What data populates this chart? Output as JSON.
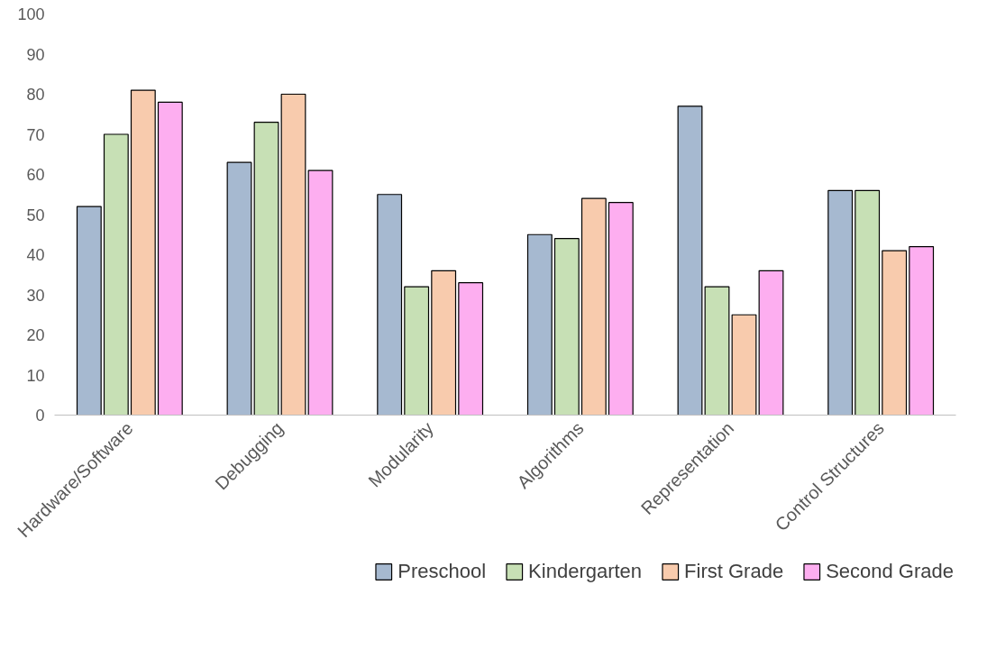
{
  "chart_data": {
    "type": "bar",
    "categories": [
      "Hardware/Software",
      "Debugging",
      "Modularity",
      "Algorithms",
      "Representation",
      "Control Structures"
    ],
    "series": [
      {
        "name": "Preschool",
        "color": "#a6b9d0",
        "values": [
          52,
          63,
          55,
          45,
          77,
          56
        ]
      },
      {
        "name": "Kindergarten",
        "color": "#c7e0b5",
        "values": [
          70,
          73,
          32,
          44,
          32,
          56
        ]
      },
      {
        "name": "First Grade",
        "color": "#f8cbad",
        "values": [
          81,
          80,
          36,
          54,
          25,
          41
        ]
      },
      {
        "name": "Second Grade",
        "color": "#fdaef0",
        "values": [
          78,
          61,
          33,
          53,
          36,
          42
        ]
      }
    ],
    "ylim": [
      0,
      100
    ],
    "yticks": [
      0,
      10,
      20,
      30,
      40,
      50,
      60,
      70,
      80,
      90,
      100
    ],
    "grid": false,
    "legend": "bottom"
  }
}
